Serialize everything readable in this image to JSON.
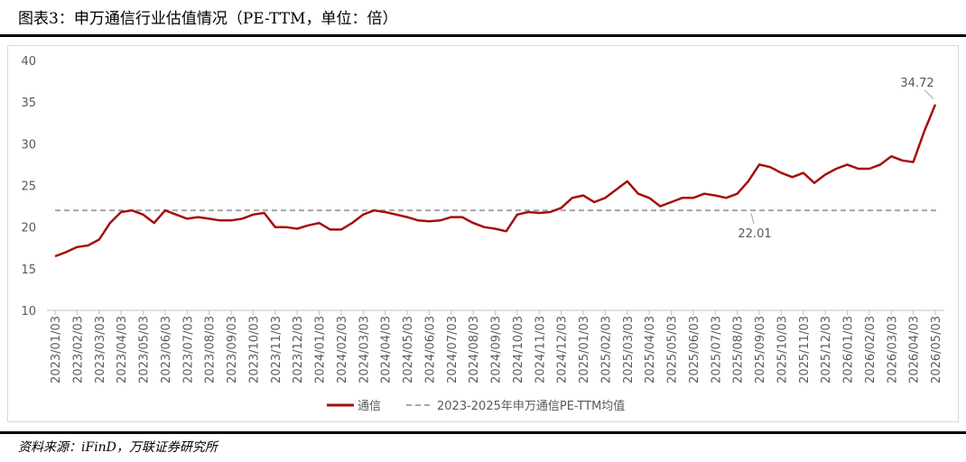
{
  "chart_data": {
    "type": "line",
    "title": "图表3：申万通信行业估值情况（PE-TTM，单位：倍）",
    "source": "资料来源：iFinD，万联证券研究所",
    "categories": [
      "2023/01/03",
      null,
      "2023/02/03",
      null,
      "2023/03/03",
      null,
      "2023/04/03",
      null,
      "2023/05/03",
      null,
      "2023/06/03",
      null,
      "2023/07/03",
      null,
      "2023/08/03",
      null,
      "2023/09/03",
      null,
      "2023/10/03",
      null,
      "2023/11/03",
      null,
      "2023/12/03",
      null,
      "2024/01/03",
      null,
      "2024/02/03",
      null,
      "2024/03/03",
      null,
      "2024/04/03",
      null,
      "2024/05/03",
      null,
      "2024/06/03",
      null,
      "2024/07/03",
      null,
      "2024/08/03",
      null,
      "2024/09/03",
      null,
      "2024/10/03",
      null,
      "2024/11/03",
      null,
      "2024/12/03",
      null,
      "2025/01/03",
      null,
      "2025/02/03",
      null,
      "2025/03/03",
      null,
      "2025/04/03",
      null,
      "2025/05/03",
      null,
      "2025/06/03",
      null,
      "2025/07/03",
      null,
      "2025/08/03",
      null,
      "2025/09/03",
      null,
      "2025/10/03",
      null,
      "2025/11/03",
      null,
      "2025/12/03",
      null,
      "2026/01/03",
      null,
      "2026/02/03",
      null,
      "2026/03/03",
      null,
      "2026/04/03",
      null,
      "2026/05/03"
    ],
    "series": [
      {
        "name": "通信",
        "color": "#a50e0e",
        "values": [
          16.5,
          17.0,
          17.6,
          17.8,
          18.5,
          20.5,
          21.8,
          22.0,
          21.5,
          20.5,
          22.0,
          21.5,
          21.0,
          21.2,
          21.0,
          20.8,
          20.8,
          21.0,
          21.5,
          21.7,
          20.0,
          20.0,
          19.8,
          20.2,
          20.5,
          19.7,
          19.7,
          20.5,
          21.5,
          22.0,
          21.8,
          21.5,
          21.2,
          20.8,
          20.7,
          20.8,
          21.2,
          21.2,
          20.5,
          20.0,
          19.8,
          19.5,
          21.5,
          21.8,
          21.7,
          21.8,
          22.3,
          23.5,
          23.8,
          23.0,
          23.5,
          24.5,
          25.5,
          24.0,
          23.5,
          22.5,
          23.0,
          23.5,
          23.5,
          24.0,
          23.8,
          23.5,
          24.0,
          25.5,
          27.5,
          27.2,
          26.5,
          26.0,
          26.5,
          25.3,
          26.3,
          27.0,
          27.5,
          27.0,
          27.0,
          27.5,
          28.5,
          28.0,
          27.8,
          31.5,
          34.72
        ]
      }
    ],
    "hline": {
      "name": "2023-2025年申万通信PE-TTM均值",
      "value": 22.01,
      "color": "#a6a6a6"
    },
    "ylim": [
      10,
      40
    ],
    "yticks": [
      10,
      15,
      20,
      25,
      30,
      35,
      40
    ],
    "grid": false
  }
}
